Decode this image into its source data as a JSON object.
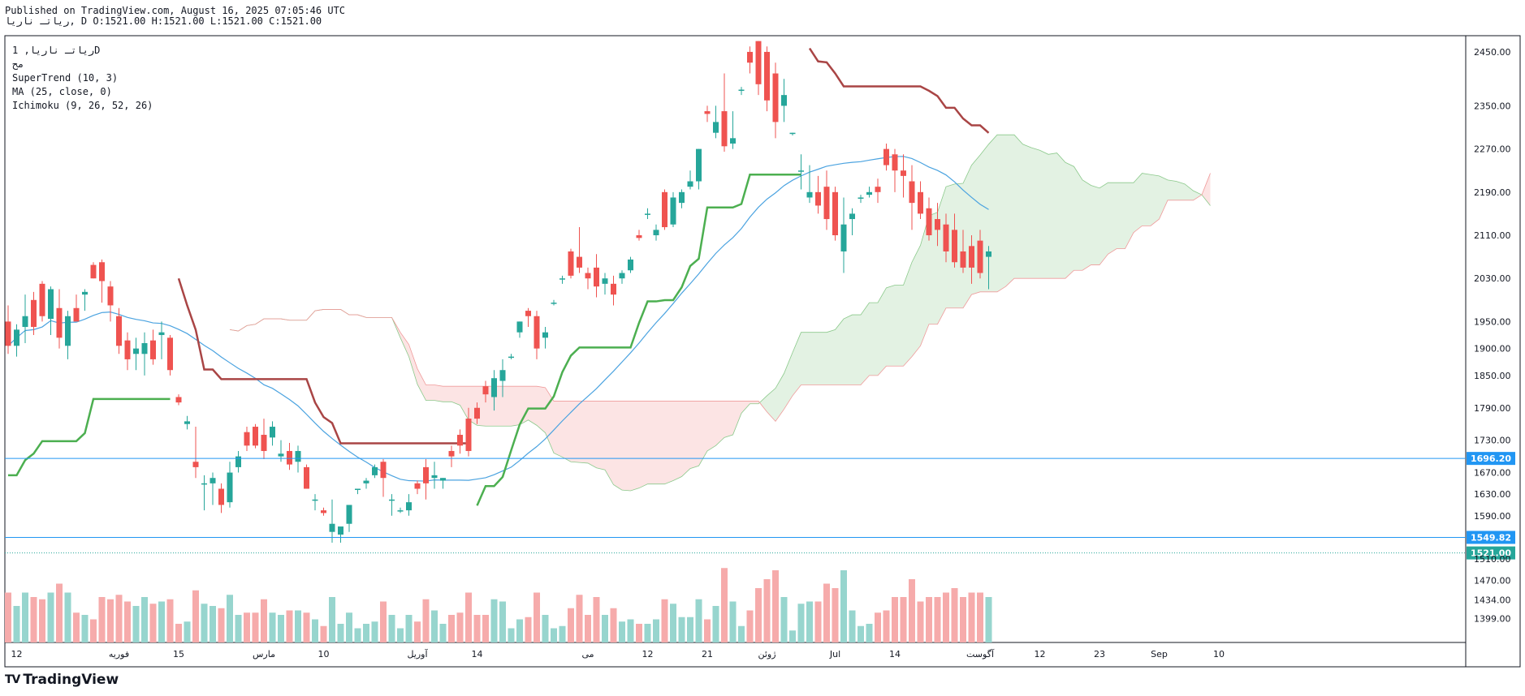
{
  "header": {
    "published": "Published on TradingView.com, August 16, 2025 07:05:46 UTC",
    "symbol_line": "ریاتـ ناریا, D O:1521.00 H:1521.00 L:1521.00 C:1521.00"
  },
  "legend": {
    "symbol": "ریاتـ ناریا, 1D",
    "sub": "مح",
    "indicators": [
      "SuperTrend (10, 3)",
      "MA (25, close, 0)",
      "Ichimoku (9, 26, 52, 26)"
    ]
  },
  "footer": {
    "brand": "TradingView",
    "logo": "TV"
  },
  "colors": {
    "up": "#26a69a",
    "down": "#ef5350",
    "supertrend_up": "#4caf50",
    "supertrend_down": "#a94545",
    "ma": "#4ba3e0",
    "price_line": "#4ba3e0",
    "cloud_green": "#e3f2e3",
    "cloud_red": "#fce4e4",
    "vol_up": "#97d5ce",
    "vol_down": "#f6abab"
  },
  "chart_data": {
    "type": "candlestick",
    "title": "ریاتـ ناریا, 1D",
    "y_range": [
      1355,
      2480
    ],
    "y_ticks": [
      2450.0,
      2350.0,
      2270.0,
      2190.0,
      2110.0,
      2030.0,
      1950.0,
      1900.0,
      1850.0,
      1790.0,
      1730.0,
      1670.0,
      1630.0,
      1590.0,
      1510.0,
      1470.0,
      1434.0,
      1399.0
    ],
    "x_ticks": [
      {
        "label": "12",
        "index": 1
      },
      {
        "label": "فوریه",
        "index": 13
      },
      {
        "label": "15",
        "index": 20
      },
      {
        "label": "مارس",
        "index": 30
      },
      {
        "label": "10",
        "index": 37
      },
      {
        "label": "آوریل",
        "index": 48
      },
      {
        "label": "14",
        "index": 55
      },
      {
        "label": "می",
        "index": 68
      },
      {
        "label": "12",
        "index": 75
      },
      {
        "label": "21",
        "index": 82
      },
      {
        "label": "ژوئن",
        "index": 89
      },
      {
        "label": "Jul",
        "index": 97
      },
      {
        "label": "14",
        "index": 104
      },
      {
        "label": "آگوست",
        "index": 114
      },
      {
        "label": "12",
        "index": 121
      },
      {
        "label": "23",
        "index": 128
      },
      {
        "label": "Sep",
        "index": 135
      },
      {
        "label": "10",
        "index": 142
      }
    ],
    "price_labels": [
      {
        "value": 1696.2,
        "label": "1696.20",
        "color": "#2196f3",
        "line": "solid"
      },
      {
        "value": 1549.82,
        "label": "1549.82",
        "color": "#2196f3",
        "line": "solid"
      },
      {
        "value": 1521.0,
        "label": "1521.00",
        "color": "#26a69a",
        "line": "dotted"
      }
    ],
    "candles": [
      [
        1950,
        1980,
        1890,
        1905
      ],
      [
        1905,
        1945,
        1885,
        1935
      ],
      [
        1940,
        2000,
        1910,
        1960
      ],
      [
        1990,
        2005,
        1925,
        1940
      ],
      [
        2020,
        2025,
        1950,
        1960
      ],
      [
        1955,
        2015,
        1925,
        2010
      ],
      [
        1975,
        2010,
        1900,
        1920
      ],
      [
        1905,
        1970,
        1880,
        1960
      ],
      [
        1975,
        2000,
        1955,
        1950
      ],
      [
        2000,
        2010,
        1970,
        2005
      ],
      [
        2055,
        2060,
        2030,
        2030
      ],
      [
        2060,
        2065,
        1985,
        2025
      ],
      [
        2015,
        2025,
        1950,
        1980
      ],
      [
        1960,
        1975,
        1890,
        1905
      ],
      [
        1915,
        1930,
        1860,
        1880
      ],
      [
        1890,
        1920,
        1860,
        1900
      ],
      [
        1890,
        1930,
        1850,
        1910
      ],
      [
        1915,
        1935,
        1870,
        1880
      ],
      [
        1925,
        1950,
        1880,
        1930
      ],
      [
        1920,
        1925,
        1850,
        1860
      ],
      [
        1810,
        1815,
        1795,
        1800
      ],
      [
        1760,
        1775,
        1750,
        1765
      ],
      [
        1690,
        1755,
        1660,
        1680
      ],
      [
        1650,
        1665,
        1600,
        1650
      ],
      [
        1650,
        1670,
        1610,
        1660
      ],
      [
        1640,
        1650,
        1595,
        1610
      ],
      [
        1615,
        1690,
        1605,
        1670
      ],
      [
        1680,
        1710,
        1670,
        1700
      ],
      [
        1745,
        1755,
        1710,
        1720
      ],
      [
        1755,
        1760,
        1715,
        1720
      ],
      [
        1740,
        1770,
        1695,
        1710
      ],
      [
        1735,
        1765,
        1720,
        1755
      ],
      [
        1700,
        1730,
        1690,
        1705
      ],
      [
        1710,
        1725,
        1675,
        1685
      ],
      [
        1690,
        1720,
        1670,
        1710
      ],
      [
        1680,
        1685,
        1640,
        1640
      ],
      [
        1620,
        1630,
        1600,
        1620
      ],
      [
        1600,
        1605,
        1590,
        1595
      ],
      [
        1560,
        1620,
        1540,
        1575
      ],
      [
        1555,
        1560,
        1540,
        1570
      ],
      [
        1575,
        1605,
        1560,
        1610
      ],
      [
        1640,
        1640,
        1630,
        1640
      ],
      [
        1650,
        1660,
        1640,
        1655
      ],
      [
        1665,
        1685,
        1660,
        1680
      ],
      [
        1690,
        1695,
        1625,
        1660
      ],
      [
        1620,
        1630,
        1590,
        1620
      ],
      [
        1600,
        1605,
        1595,
        1600
      ],
      [
        1600,
        1630,
        1590,
        1615
      ],
      [
        1650,
        1655,
        1630,
        1640
      ],
      [
        1680,
        1695,
        1620,
        1650
      ],
      [
        1660,
        1690,
        1640,
        1665
      ],
      [
        1655,
        1660,
        1640,
        1660
      ],
      [
        1710,
        1720,
        1680,
        1700
      ],
      [
        1740,
        1750,
        1705,
        1720
      ],
      [
        1770,
        1790,
        1700,
        1710
      ],
      [
        1790,
        1800,
        1760,
        1770
      ],
      [
        1830,
        1840,
        1800,
        1815
      ],
      [
        1810,
        1860,
        1785,
        1845
      ],
      [
        1840,
        1880,
        1810,
        1860
      ],
      [
        1885,
        1890,
        1880,
        1885
      ],
      [
        1930,
        1950,
        1920,
        1950
      ],
      [
        1970,
        1975,
        1940,
        1960
      ],
      [
        1960,
        1970,
        1880,
        1900
      ],
      [
        1920,
        1940,
        1900,
        1930
      ],
      [
        1985,
        1990,
        1980,
        1985
      ],
      [
        2030,
        2035,
        2020,
        2030
      ],
      [
        2080,
        2085,
        2030,
        2035
      ],
      [
        2070,
        2125,
        2040,
        2050
      ],
      [
        2040,
        2050,
        2010,
        2030
      ],
      [
        2050,
        2075,
        1995,
        2015
      ],
      [
        2020,
        2040,
        2000,
        2030
      ],
      [
        2020,
        2035,
        1980,
        2000
      ],
      [
        2030,
        2045,
        2020,
        2040
      ],
      [
        2045,
        2070,
        2040,
        2065
      ],
      [
        2110,
        2120,
        2100,
        2105
      ],
      [
        2150,
        2160,
        2140,
        2150
      ],
      [
        2110,
        2130,
        2100,
        2120
      ],
      [
        2190,
        2195,
        2120,
        2125
      ],
      [
        2130,
        2190,
        2125,
        2180
      ],
      [
        2170,
        2195,
        2160,
        2190
      ],
      [
        2200,
        2230,
        2195,
        2210
      ],
      [
        2210,
        2270,
        2195,
        2270
      ],
      [
        2340,
        2350,
        2320,
        2335
      ],
      [
        2300,
        2350,
        2290,
        2320
      ],
      [
        2340,
        2410,
        2265,
        2275
      ],
      [
        2280,
        2340,
        2270,
        2290
      ],
      [
        2380,
        2385,
        2370,
        2380
      ],
      [
        2450,
        2460,
        2410,
        2430
      ],
      [
        2470,
        2470,
        2370,
        2390
      ],
      [
        2450,
        2460,
        2340,
        2360
      ],
      [
        2410,
        2430,
        2290,
        2320
      ],
      [
        2350,
        2400,
        2320,
        2370
      ],
      [
        2300,
        2300,
        2295,
        2300
      ],
      [
        2230,
        2260,
        2195,
        2230
      ],
      [
        2180,
        2240,
        2170,
        2190
      ],
      [
        2190,
        2220,
        2150,
        2165
      ],
      [
        2200,
        2230,
        2120,
        2140
      ],
      [
        2190,
        2200,
        2100,
        2110
      ],
      [
        2080,
        2180,
        2040,
        2130
      ],
      [
        2140,
        2160,
        2110,
        2150
      ],
      [
        2180,
        2185,
        2170,
        2180
      ],
      [
        2185,
        2200,
        2180,
        2190
      ],
      [
        2200,
        2215,
        2170,
        2190
      ],
      [
        2270,
        2280,
        2230,
        2240
      ],
      [
        2260,
        2270,
        2190,
        2230
      ],
      [
        2230,
        2260,
        2180,
        2220
      ],
      [
        2210,
        2240,
        2120,
        2170
      ],
      [
        2190,
        2210,
        2140,
        2150
      ],
      [
        2160,
        2180,
        2100,
        2110
      ],
      [
        2140,
        2170,
        2090,
        2120
      ],
      [
        2130,
        2150,
        2060,
        2080
      ],
      [
        2120,
        2150,
        2050,
        2060
      ],
      [
        2080,
        2120,
        2040,
        2050
      ],
      [
        2090,
        2110,
        2020,
        2050
      ],
      [
        2100,
        2120,
        2030,
        2040
      ],
      [
        2070,
        2090,
        2010,
        2080
      ]
    ]
  }
}
